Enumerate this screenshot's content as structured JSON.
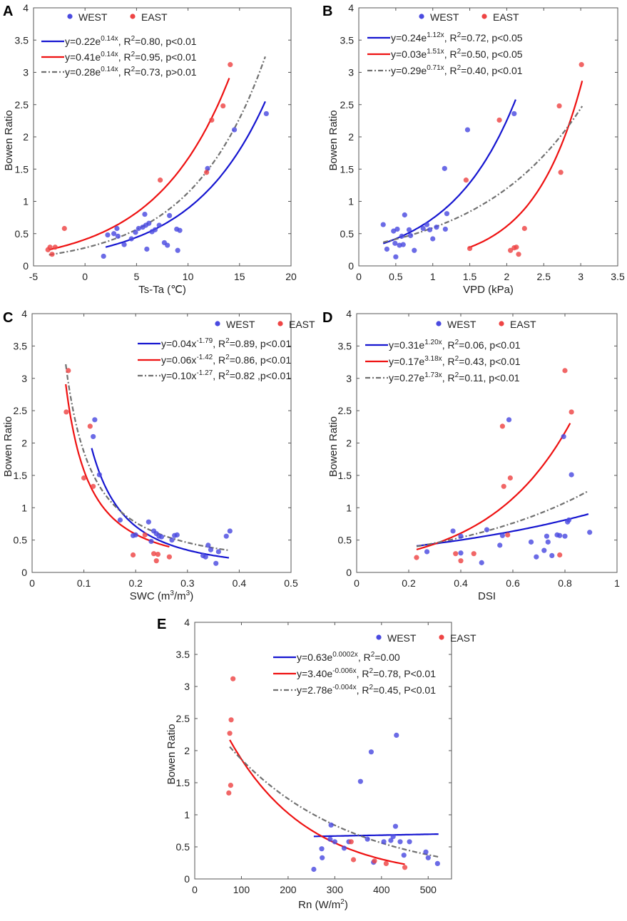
{
  "figure": {
    "y_label": "Bowen Ratio",
    "legend_west": "WEST",
    "legend_east": "EAST",
    "colors": {
      "west": "#4a4ae0",
      "east": "#ee4444",
      "west_line": "#1515d0",
      "east_line": "#ee1111",
      "all_line": "#707070"
    }
  },
  "chart_data": [
    {
      "id": "A",
      "panel_label": "A",
      "type": "scatter",
      "xlabel": "Ts-Ta (℃)",
      "ylabel": "Bowen Ratio",
      "xlim": [
        -5,
        20
      ],
      "ylim": [
        0,
        4
      ],
      "xticks": [
        "-5",
        "0",
        "5",
        "10",
        "15",
        "20"
      ],
      "yticks": [
        "0",
        "0.5",
        "1",
        "1.5",
        "2",
        "2.5",
        "3",
        "3.5",
        "4"
      ],
      "xtick_values": [
        -5,
        0,
        5,
        10,
        15,
        20
      ],
      "ytick_values": [
        0,
        0.5,
        1,
        1.5,
        2,
        2.5,
        3,
        3.5,
        4
      ],
      "fits": [
        {
          "series": "west",
          "text": "y=0.22e",
          "sup": "0.14x",
          "rest": ", R",
          "rsup": "2",
          "tail": "=0.80, p<0.01",
          "func": "exp",
          "a": 0.22,
          "b": 0.14,
          "range": [
            2,
            17.5
          ]
        },
        {
          "series": "east",
          "text": "y=0.41e",
          "sup": "0.14x",
          "rest": ", R",
          "rsup": "2",
          "tail": "=0.95, p<0.01",
          "func": "exp",
          "a": 0.41,
          "b": 0.14,
          "range": [
            -3.5,
            14
          ]
        },
        {
          "series": "all",
          "text": "y=0.28e",
          "sup": "0.14x",
          "rest": ", R",
          "rsup": "2",
          "tail": "=0.73, p>0.01",
          "func": "exp",
          "a": 0.28,
          "b": 0.14,
          "range": [
            -3.5,
            17.5
          ]
        }
      ],
      "west": [
        [
          1.8,
          0.15
        ],
        [
          2.2,
          0.48
        ],
        [
          2.8,
          0.5
        ],
        [
          3.1,
          0.58
        ],
        [
          3.2,
          0.46
        ],
        [
          3.8,
          0.33
        ],
        [
          4.5,
          0.42
        ],
        [
          4.9,
          0.52
        ],
        [
          5.2,
          0.58
        ],
        [
          5.6,
          0.6
        ],
        [
          5.8,
          0.8
        ],
        [
          5.9,
          0.63
        ],
        [
          6.0,
          0.26
        ],
        [
          6.2,
          0.66
        ],
        [
          6.5,
          0.53
        ],
        [
          6.8,
          0.56
        ],
        [
          7.2,
          0.63
        ],
        [
          7.7,
          0.36
        ],
        [
          8.0,
          0.32
        ],
        [
          8.2,
          0.78
        ],
        [
          8.9,
          0.57
        ],
        [
          9.0,
          0.24
        ],
        [
          9.2,
          0.55
        ],
        [
          11.9,
          1.51
        ],
        [
          14.5,
          2.11
        ],
        [
          17.6,
          2.36
        ]
      ],
      "east": [
        [
          -3.6,
          0.25
        ],
        [
          -3.4,
          0.29
        ],
        [
          -3.2,
          0.18
        ],
        [
          -2.9,
          0.29
        ],
        [
          -2.0,
          0.58
        ],
        [
          7.3,
          1.33
        ],
        [
          11.8,
          1.45
        ],
        [
          12.3,
          2.26
        ],
        [
          13.4,
          2.48
        ],
        [
          14.1,
          3.12
        ]
      ]
    },
    {
      "id": "B",
      "panel_label": "B",
      "type": "scatter",
      "xlabel": "VPD (kPa)",
      "ylabel": "Bowen Ratio",
      "xlim": [
        0,
        3.5
      ],
      "ylim": [
        0,
        4
      ],
      "xticks": [
        "0",
        "0.5",
        "1",
        "1.5",
        "2",
        "2.5",
        "3",
        "3.5"
      ],
      "yticks": [
        "0",
        "0.5",
        "1",
        "1.5",
        "2",
        "2.5",
        "3",
        "3.5",
        "4"
      ],
      "xtick_values": [
        0,
        0.5,
        1,
        1.5,
        2,
        2.5,
        3,
        3.5
      ],
      "ytick_values": [
        0,
        0.5,
        1,
        1.5,
        2,
        2.5,
        3,
        3.5,
        4
      ],
      "fits": [
        {
          "series": "west",
          "text": "y=0.24e",
          "sup": "1.12x",
          "rest": ", R",
          "rsup": "2",
          "tail": "=0.72, p<0.05",
          "func": "exp",
          "a": 0.24,
          "b": 1.12,
          "range": [
            0.33,
            2.12
          ]
        },
        {
          "series": "east",
          "text": "y=0.03e",
          "sup": "1.51x",
          "rest": ", R",
          "rsup": "2",
          "tail": "=0.50, p<0.05",
          "func": "exp",
          "a": 0.03,
          "b": 1.51,
          "range": [
            1.48,
            3.02
          ]
        },
        {
          "series": "all",
          "text": "y=0.29e",
          "sup": "0.71x",
          "rest": ", R",
          "rsup": "2",
          "tail": "=0.40, p<0.01",
          "func": "exp",
          "a": 0.29,
          "b": 0.71,
          "range": [
            0.33,
            3.02
          ]
        }
      ],
      "west": [
        [
          0.33,
          0.64
        ],
        [
          0.38,
          0.26
        ],
        [
          0.47,
          0.54
        ],
        [
          0.49,
          0.35
        ],
        [
          0.5,
          0.14
        ],
        [
          0.52,
          0.57
        ],
        [
          0.55,
          0.32
        ],
        [
          0.58,
          0.46
        ],
        [
          0.6,
          0.33
        ],
        [
          0.62,
          0.79
        ],
        [
          0.68,
          0.56
        ],
        [
          0.7,
          0.47
        ],
        [
          0.75,
          0.24
        ],
        [
          0.87,
          0.58
        ],
        [
          0.92,
          0.64
        ],
        [
          0.96,
          0.56
        ],
        [
          1.0,
          0.42
        ],
        [
          1.05,
          0.6
        ],
        [
          1.16,
          1.51
        ],
        [
          1.17,
          0.57
        ],
        [
          1.19,
          0.81
        ],
        [
          1.47,
          2.11
        ],
        [
          2.1,
          2.36
        ]
      ],
      "east": [
        [
          1.45,
          1.33
        ],
        [
          1.5,
          0.27
        ],
        [
          1.9,
          2.26
        ],
        [
          2.05,
          0.24
        ],
        [
          2.1,
          0.28
        ],
        [
          2.13,
          0.29
        ],
        [
          2.16,
          0.18
        ],
        [
          2.24,
          0.58
        ],
        [
          2.71,
          2.48
        ],
        [
          2.73,
          1.45
        ],
        [
          3.01,
          3.12
        ]
      ]
    },
    {
      "id": "C",
      "panel_label": "C",
      "type": "scatter",
      "xlabel": "SWC (m",
      "xlabel_sup1": "3",
      "xlabel_mid": "/m",
      "xlabel_sup2": "3",
      "xlabel_end": ")",
      "ylabel": "Bowen Ratio",
      "xlim": [
        0,
        0.5
      ],
      "ylim": [
        0,
        4
      ],
      "xticks": [
        "0",
        "0.1",
        "0.2",
        "0.3",
        "0.4",
        "0.5"
      ],
      "yticks": [
        "0",
        "0.5",
        "1",
        "1.5",
        "2",
        "2.5",
        "3",
        "3.5",
        "4"
      ],
      "xtick_values": [
        0,
        0.1,
        0.2,
        0.3,
        0.4,
        0.5
      ],
      "ytick_values": [
        0,
        0.5,
        1,
        1.5,
        2,
        2.5,
        3,
        3.5,
        4
      ],
      "fits": [
        {
          "series": "west",
          "text": "y=0.04x",
          "sup": "-1.79",
          "rest": ", R",
          "rsup": "2",
          "tail": "=0.89, p<0.01",
          "func": "pow",
          "a": 0.04,
          "b": -1.79,
          "range": [
            0.115,
            0.38
          ]
        },
        {
          "series": "east",
          "text": "y=0.06x",
          "sup": "-1.42",
          "rest": ", R",
          "rsup": "2",
          "tail": "=0.86, p<0.01",
          "func": "pow",
          "a": 0.06,
          "b": -1.42,
          "range": [
            0.065,
            0.265
          ]
        },
        {
          "series": "all",
          "text": "y=0.10x",
          "sup": "-1.27",
          "rest": ", R",
          "rsup": "2",
          "tail": "=0.82 ,p<0.01",
          "func": "pow",
          "a": 0.1,
          "b": -1.27,
          "range": [
            0.065,
            0.38
          ]
        }
      ],
      "west": [
        [
          0.118,
          2.1
        ],
        [
          0.121,
          2.36
        ],
        [
          0.13,
          1.51
        ],
        [
          0.17,
          0.81
        ],
        [
          0.195,
          0.57
        ],
        [
          0.2,
          0.58
        ],
        [
          0.225,
          0.78
        ],
        [
          0.23,
          0.48
        ],
        [
          0.235,
          0.64
        ],
        [
          0.24,
          0.6
        ],
        [
          0.245,
          0.56
        ],
        [
          0.25,
          0.55
        ],
        [
          0.27,
          0.5
        ],
        [
          0.275,
          0.57
        ],
        [
          0.28,
          0.58
        ],
        [
          0.33,
          0.26
        ],
        [
          0.335,
          0.24
        ],
        [
          0.34,
          0.42
        ],
        [
          0.345,
          0.35
        ],
        [
          0.355,
          0.14
        ],
        [
          0.36,
          0.32
        ],
        [
          0.375,
          0.56
        ],
        [
          0.382,
          0.64
        ]
      ],
      "east": [
        [
          0.066,
          2.48
        ],
        [
          0.07,
          3.12
        ],
        [
          0.1,
          1.46
        ],
        [
          0.112,
          2.26
        ],
        [
          0.118,
          1.33
        ],
        [
          0.195,
          0.27
        ],
        [
          0.218,
          0.58
        ],
        [
          0.235,
          0.29
        ],
        [
          0.24,
          0.18
        ],
        [
          0.243,
          0.28
        ],
        [
          0.265,
          0.24
        ]
      ]
    },
    {
      "id": "D",
      "panel_label": "D",
      "type": "scatter",
      "xlabel": "DSI",
      "ylabel": "Bowen Ratio",
      "xlim": [
        0,
        1
      ],
      "ylim": [
        0,
        4
      ],
      "xticks": [
        "0",
        "0.2",
        "0.4",
        "0.6",
        "0.8",
        "1"
      ],
      "yticks": [
        "0",
        "0.5",
        "1",
        "1.5",
        "2",
        "2.5",
        "3",
        "3.5",
        "4"
      ],
      "xtick_values": [
        0,
        0.2,
        0.4,
        0.6,
        0.8,
        1
      ],
      "ytick_values": [
        0,
        0.5,
        1,
        1.5,
        2,
        2.5,
        3,
        3.5,
        4
      ],
      "fits": [
        {
          "series": "west",
          "text": "y=0.31e",
          "sup": "1.20x",
          "rest": ", R",
          "rsup": "2",
          "tail": "=0.06, p<0.01",
          "func": "exp",
          "a": 0.31,
          "b": 1.2,
          "range": [
            0.23,
            0.89
          ]
        },
        {
          "series": "east",
          "text": "y=0.17e",
          "sup": "3.18x",
          "rest": ", R",
          "rsup": "2",
          "tail": "=0.43, p<0.01",
          "func": "exp",
          "a": 0.17,
          "b": 3.18,
          "range": [
            0.23,
            0.82
          ]
        },
        {
          "series": "all",
          "text": "y=0.27e",
          "sup": "1.73x",
          "rest": ", R",
          "rsup": "2",
          "tail": "=0.11, p<0.01",
          "func": "exp",
          "a": 0.27,
          "b": 1.73,
          "range": [
            0.23,
            0.89
          ]
        }
      ],
      "west": [
        [
          0.27,
          0.32
        ],
        [
          0.37,
          0.64
        ],
        [
          0.4,
          0.3
        ],
        [
          0.4,
          0.56
        ],
        [
          0.48,
          0.15
        ],
        [
          0.5,
          0.66
        ],
        [
          0.55,
          0.42
        ],
        [
          0.56,
          0.57
        ],
        [
          0.585,
          2.36
        ],
        [
          0.67,
          0.47
        ],
        [
          0.69,
          0.24
        ],
        [
          0.72,
          0.34
        ],
        [
          0.73,
          0.56
        ],
        [
          0.735,
          0.47
        ],
        [
          0.75,
          0.26
        ],
        [
          0.77,
          0.58
        ],
        [
          0.78,
          0.57
        ],
        [
          0.795,
          2.1
        ],
        [
          0.8,
          0.56
        ],
        [
          0.81,
          0.78
        ],
        [
          0.815,
          0.81
        ],
        [
          0.825,
          1.51
        ],
        [
          0.895,
          0.62
        ]
      ],
      "east": [
        [
          0.23,
          0.23
        ],
        [
          0.38,
          0.29
        ],
        [
          0.4,
          0.18
        ],
        [
          0.45,
          0.29
        ],
        [
          0.56,
          2.26
        ],
        [
          0.565,
          1.33
        ],
        [
          0.58,
          0.58
        ],
        [
          0.59,
          1.46
        ],
        [
          0.78,
          0.27
        ],
        [
          0.8,
          3.12
        ],
        [
          0.825,
          2.48
        ]
      ]
    },
    {
      "id": "E",
      "panel_label": "E",
      "type": "scatter",
      "xlabel": "Rn (W/m",
      "xlabel_sup1": "2",
      "xlabel_end": ")",
      "ylabel": "Bowen Ratio",
      "xlim": [
        0,
        550
      ],
      "ylim": [
        0,
        4
      ],
      "xticks": [
        "0",
        "100",
        "200",
        "300",
        "400",
        "500"
      ],
      "yticks": [
        "0",
        "0.5",
        "1",
        "1.5",
        "2",
        "2.5",
        "3",
        "3.5",
        "4"
      ],
      "xtick_values": [
        0,
        100,
        200,
        300,
        400,
        500
      ],
      "ytick_values": [
        0,
        0.5,
        1,
        1.5,
        2,
        2.5,
        3,
        3.5,
        4
      ],
      "fits": [
        {
          "series": "west",
          "text": "y=0.63e",
          "sup": "0.0002x",
          "rest": ", R",
          "rsup": "2",
          "tail": "=0.00",
          "func": "exp",
          "a": 0.63,
          "b": 0.0002,
          "range": [
            255,
            522
          ]
        },
        {
          "series": "east",
          "text": "y=3.40e",
          "sup": "-0.006x",
          "rest": ", R",
          "rsup": "2",
          "tail": "=0.78, P<0.01",
          "func": "exp",
          "a": 3.4,
          "b": -0.006,
          "range": [
            75,
            450
          ]
        },
        {
          "series": "all",
          "text": "y=2.78e",
          "sup": "-0.004x",
          "rest": ", R",
          "rsup": "2",
          "tail": "=0.45, P<0.01",
          "func": "exp",
          "a": 2.78,
          "b": -0.004,
          "range": [
            75,
            522
          ]
        }
      ],
      "west": [
        [
          255,
          0.15
        ],
        [
          272,
          0.47
        ],
        [
          273,
          0.33
        ],
        [
          290,
          0.62
        ],
        [
          292,
          0.84
        ],
        [
          300,
          0.58
        ],
        [
          320,
          0.48
        ],
        [
          330,
          0.58
        ],
        [
          355,
          1.52
        ],
        [
          370,
          0.62
        ],
        [
          378,
          1.98
        ],
        [
          383,
          0.26
        ],
        [
          405,
          0.58
        ],
        [
          420,
          0.6
        ],
        [
          425,
          0.66
        ],
        [
          430,
          0.82
        ],
        [
          432,
          2.24
        ],
        [
          440,
          0.58
        ],
        [
          448,
          0.37
        ],
        [
          460,
          0.58
        ],
        [
          495,
          0.42
        ],
        [
          500,
          0.33
        ],
        [
          520,
          0.24
        ]
      ],
      "east": [
        [
          73,
          1.34
        ],
        [
          75,
          2.27
        ],
        [
          77,
          1.46
        ],
        [
          78,
          2.48
        ],
        [
          82,
          3.12
        ],
        [
          335,
          0.58
        ],
        [
          340,
          0.3
        ],
        [
          385,
          0.28
        ],
        [
          410,
          0.24
        ],
        [
          450,
          0.18
        ]
      ]
    }
  ]
}
